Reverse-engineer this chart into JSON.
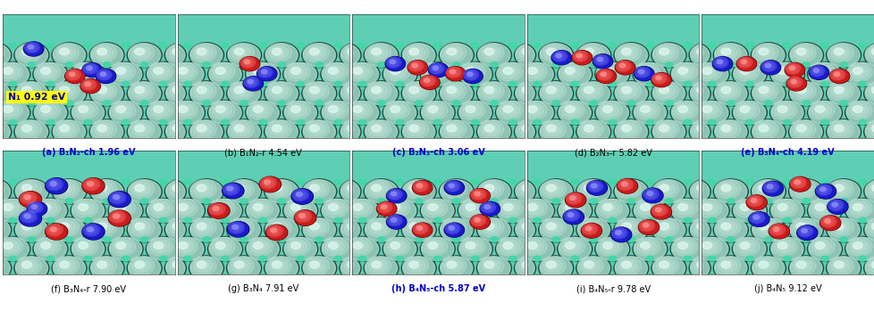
{
  "figsize": [
    9.79,
    3.58
  ],
  "dpi": 100,
  "bg_color": "#ffffff",
  "panel_bg": "#5ecfb8",
  "nrows": 2,
  "ncols": 5,
  "labels_row1": [
    "(a) B₁N₂-ch 1.96 eV",
    "(b) B₁N₂-r 4.54 eV",
    "(c) B₂N₃-ch 3.06 eV",
    "(d) B₂N₃-r 5.82 eV",
    "(e) B₃N₄-ch 4.19 eV"
  ],
  "labels_row2": [
    "(f) B₃N₄-r 7.90 eV",
    "(g) B₃N₄ 7.91 eV",
    "(h) B₄N₅-ch 5.87 eV",
    "(i) B₄N₅-r 9.78 eV",
    "(j) B₄N₅ 9.12 eV"
  ],
  "bold_indices_row1": [
    0,
    2,
    4
  ],
  "bold_indices_row2": [
    2
  ],
  "label_color_row1": [
    "#0000cc",
    "#000000",
    "#0000cc",
    "#000000",
    "#0000cc"
  ],
  "label_color_row2": [
    "#000000",
    "#000000",
    "#0000cc",
    "#000000",
    "#000000"
  ],
  "inset_label": "N₁ 0.92 eV",
  "inset_bg": "#ffff00",
  "inset_text_color": "#000099",
  "cu_sphere_r": 0.115,
  "cu_color_dark": "#1a3a30",
  "cu_color_main": "#c8e8d8",
  "cu_color_hi": "#f0fcf8",
  "teal_bg": "#5ecfb5",
  "small_teal_r": 0.035,
  "small_teal_color": "#30c8a0"
}
